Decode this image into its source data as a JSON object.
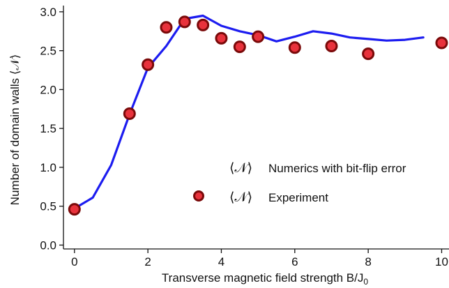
{
  "chart_data": {
    "type": "line",
    "xlabel": "Transverse magnetic field strength B/J",
    "xlabel_sub": "0",
    "ylabel": "Number of domain walls ⟨𝒩⟩",
    "xlim": [
      -0.3,
      10.2
    ],
    "ylim": [
      -0.05,
      3.08
    ],
    "x_ticks": [
      0,
      2,
      4,
      6,
      8,
      10
    ],
    "x_tick_labels": [
      "0",
      "2",
      "4",
      "6",
      "8",
      "10"
    ],
    "y_ticks": [
      0.0,
      0.5,
      1.0,
      1.5,
      2.0,
      2.5,
      3.0
    ],
    "y_tick_labels": [
      "0.0",
      "0.5",
      "1.0",
      "1.5",
      "2.0",
      "2.5",
      "3.0"
    ],
    "grid": false,
    "legend_position": "center-right",
    "series": [
      {
        "name": "⟨𝒩⟩ Numerics with bit-flip error",
        "kind": "line",
        "color": "#1c1cf0",
        "x": [
          0,
          0.5,
          1.0,
          1.5,
          2.0,
          2.5,
          3.0,
          3.5,
          4.0,
          4.5,
          5.0,
          5.5,
          6.0,
          6.5,
          7.0,
          7.5,
          8.0,
          8.5,
          9.0,
          9.5
        ],
        "y": [
          0.47,
          0.61,
          1.03,
          1.68,
          2.28,
          2.56,
          2.91,
          2.95,
          2.82,
          2.75,
          2.7,
          2.62,
          2.68,
          2.75,
          2.72,
          2.67,
          2.65,
          2.63,
          2.64,
          2.67
        ]
      },
      {
        "name": "⟨𝒩⟩ Experiment",
        "kind": "scatter",
        "color": "#e8323c",
        "edge_color": "#7a0a0a",
        "x": [
          0,
          1.5,
          2.0,
          2.5,
          3.0,
          3.5,
          4.0,
          4.5,
          5.0,
          6.0,
          7.0,
          8.0,
          10.0
        ],
        "y": [
          0.46,
          1.69,
          2.32,
          2.8,
          2.87,
          2.83,
          2.66,
          2.55,
          2.68,
          2.54,
          2.56,
          2.46,
          2.6
        ]
      }
    ],
    "legend": [
      {
        "symbol": "⟨𝒩⟩",
        "label": "Numerics with bit-flip error"
      },
      {
        "symbol": "⟨𝒩⟩",
        "label": "Experiment"
      }
    ]
  }
}
